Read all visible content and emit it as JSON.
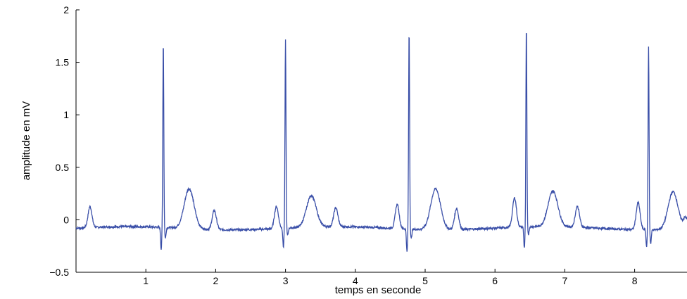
{
  "chart_data": {
    "type": "line",
    "title": "",
    "xlabel": "temps en seconde",
    "ylabel": "amplitude en mV",
    "xlim": [
      0,
      8.75
    ],
    "ylim": [
      -0.5,
      2
    ],
    "xticks": [
      1,
      2,
      3,
      4,
      5,
      6,
      7,
      8
    ],
    "yticks": [
      2,
      1.5,
      1,
      0.5,
      0,
      -0.5
    ],
    "ytick_labels": [
      "2",
      "1.5",
      "1",
      "0.5",
      "0",
      "−0.5"
    ],
    "grid": false,
    "legend": "none",
    "series": [
      {
        "color": "#3a4fa8",
        "beats": [
          {
            "p": [
              0.2,
              0.12
            ],
            "r": [
              1.25,
              1.7
            ],
            "q": [
              1.22,
              -0.29
            ],
            "s": [
              1.28,
              -0.18
            ],
            "t": [
              1.62,
              0.3
            ],
            "u": [
              1.98,
              0.1
            ]
          },
          {
            "p": [
              2.87,
              0.13
            ],
            "r": [
              3.0,
              1.71
            ],
            "q": [
              2.97,
              -0.26
            ],
            "s": [
              3.03,
              -0.15
            ],
            "t": [
              3.37,
              0.22
            ],
            "u": [
              3.72,
              0.1
            ]
          },
          {
            "p": [
              4.6,
              0.15
            ],
            "r": [
              4.77,
              1.82
            ],
            "q": [
              4.74,
              -0.3
            ],
            "s": [
              4.8,
              -0.17
            ],
            "t": [
              5.15,
              0.31
            ],
            "u": [
              5.45,
              0.12
            ]
          },
          {
            "p": [
              6.28,
              0.2
            ],
            "r": [
              6.45,
              1.83
            ],
            "q": [
              6.42,
              -0.28
            ],
            "s": [
              6.48,
              -0.15
            ],
            "t": [
              6.83,
              0.26
            ],
            "u": [
              7.18,
              0.12
            ]
          },
          {
            "p": [
              8.05,
              0.18
            ],
            "r": [
              8.2,
              1.66
            ],
            "q": [
              8.17,
              -0.24
            ],
            "s": [
              8.23,
              -0.21
            ],
            "t": [
              8.55,
              0.28
            ],
            "u": [
              8.73,
              0.02
            ]
          }
        ],
        "baseline": -0.08
      }
    ]
  }
}
